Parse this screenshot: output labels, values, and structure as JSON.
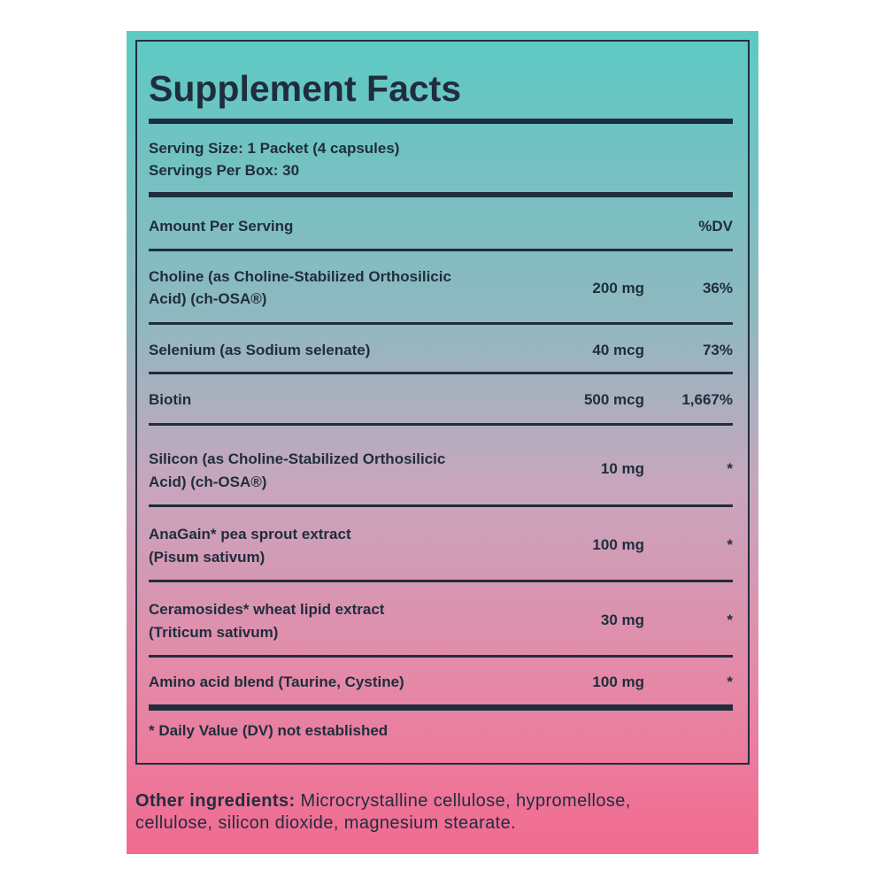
{
  "title": "Supplement Facts",
  "serving_size": "Serving Size: 1 Packet (4 capsules)",
  "servings_per_box": "Servings Per Box: 30",
  "header": {
    "amount": "Amount Per Serving",
    "dv": "%DV"
  },
  "rows": [
    {
      "name_lines": [
        "Choline (as Choline-Stabilized Orthosilicic",
        "Acid) (ch-OSA®)"
      ],
      "amount": "200 mg",
      "dv": "36%"
    },
    {
      "name_lines": [
        "Selenium (as Sodium selenate)"
      ],
      "amount": "40 mcg",
      "dv": "73%"
    },
    {
      "name_lines": [
        "Biotin"
      ],
      "amount": "500 mcg",
      "dv": "1,667%"
    },
    {
      "name_lines": [
        "Silicon (as Choline-Stabilized Orthosilicic",
        "Acid) (ch-OSA®)"
      ],
      "amount": "10 mg",
      "dv": "*"
    },
    {
      "name_lines": [
        "AnaGain* pea sprout extract",
        "(Pisum sativum)"
      ],
      "amount": "100 mg",
      "dv": "*"
    },
    {
      "name_lines": [
        "Ceramosides* wheat lipid extract",
        "(Triticum sativum)"
      ],
      "amount": "30 mg",
      "dv": "*"
    },
    {
      "name_lines": [
        "Amino acid blend (Taurine, Cystine)"
      ],
      "amount": "100 mg",
      "dv": "*"
    }
  ],
  "footnote": "* Daily Value (DV) not established",
  "other_ingredients": {
    "label": "Other ingredients:",
    "text_lines": [
      "Microcrystalline cellulose, hypromellose,",
      "cellulose, silicon dioxide, magnesium stearate."
    ]
  }
}
